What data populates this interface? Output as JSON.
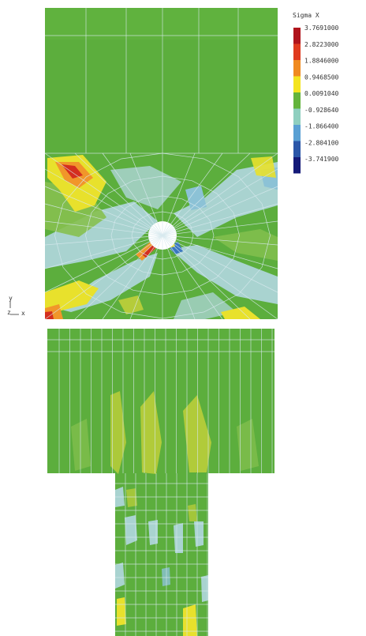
{
  "legend": {
    "title": "Sigma X",
    "values": [
      "3.7691000",
      "2.8223000",
      "1.8846000",
      "0.9468500",
      "0.0091040",
      "-0.928640",
      "-1.866400",
      "-2.804100",
      "-3.741900"
    ],
    "colors": [
      "#b0141c",
      "#e03a1e",
      "#f08a1f",
      "#f4e41f",
      "#63b43c",
      "#8fcfbf",
      "#5aa0d3",
      "#2a56a8",
      "#141a78"
    ]
  },
  "axes": {
    "y_label": "y",
    "z_label": "z",
    "x_label": "x"
  },
  "colors": {
    "green": "#5cae3d",
    "light_green": "#86c04f",
    "yellow_green": "#b5cc3a",
    "yellow": "#e8e12c",
    "orange": "#f1962a",
    "red": "#d42e1e",
    "cyan": "#a9d3d0",
    "light_blue": "#8cc2d6",
    "blue": "#3a77c0"
  }
}
